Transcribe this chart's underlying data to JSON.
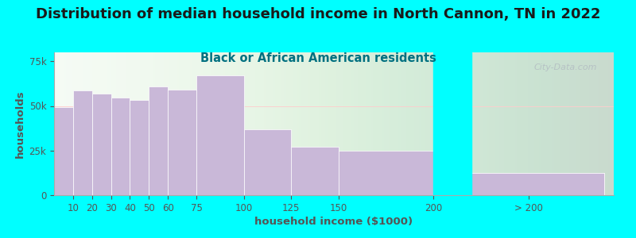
{
  "title": "Distribution of median household income in North Cannon, TN in 2022",
  "subtitle": "Black or African American residents",
  "xlabel": "household income ($1000)",
  "ylabel": "households",
  "background_outer": "#00FFFF",
  "background_plot_color": "#eef8ee",
  "bar_color": "#c9b8d8",
  "title_fontsize": 13,
  "subtitle_fontsize": 10.5,
  "axis_label_fontsize": 9.5,
  "tick_fontsize": 8.5,
  "title_color": "#1a1a1a",
  "subtitle_color": "#007080",
  "axis_label_color": "#555555",
  "tick_color": "#555555",
  "watermark_text": "City-Data.com",
  "bin_edges": [
    0,
    10,
    20,
    30,
    40,
    50,
    60,
    75,
    100,
    125,
    150,
    200,
    290
  ],
  "values": [
    49500,
    58500,
    57000,
    54500,
    53500,
    61000,
    59000,
    67000,
    37000,
    27000,
    25000,
    12500
  ],
  "ylim": [
    0,
    80000
  ],
  "yticks": [
    0,
    25000,
    50000,
    75000
  ],
  "xtick_positions": [
    10,
    20,
    30,
    40,
    50,
    60,
    75,
    100,
    125,
    150,
    200,
    250
  ],
  "xtick_labels": [
    "10",
    "20",
    "30",
    "40",
    "50",
    "60",
    "75",
    "100",
    "125",
    "150",
    "200",
    "> 200"
  ],
  "xlim": [
    0,
    295
  ]
}
